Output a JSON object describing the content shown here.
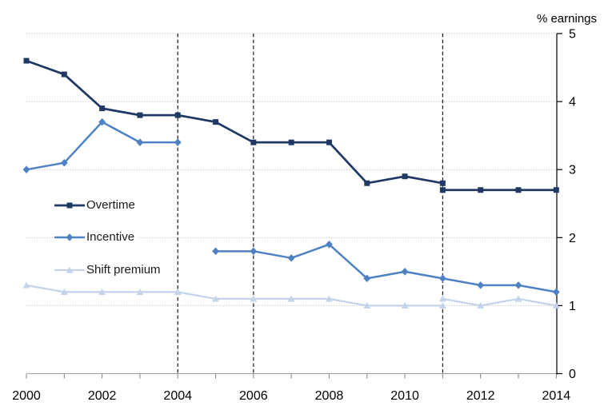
{
  "chart_data": {
    "type": "line",
    "title": "",
    "y_axis": {
      "label": "% earnings",
      "min": 0,
      "max": 5,
      "ticks": [
        0,
        1,
        2,
        3,
        4,
        5
      ]
    },
    "x_axis": {
      "min": 2000,
      "max": 2014,
      "tick_years": [
        2000,
        2001,
        2002,
        2003,
        2004,
        2005,
        2006,
        2007,
        2008,
        2009,
        2010,
        2011,
        2012,
        2013,
        2014
      ],
      "label_years": [
        2000,
        2002,
        2004,
        2006,
        2008,
        2010,
        2012,
        2014
      ]
    },
    "reference_lines": {
      "style": "dashed",
      "color": "#1a1a1a",
      "years": [
        2004,
        2006,
        2011
      ]
    },
    "grid": {
      "horizontal": true,
      "style": "dotted",
      "color": "#c3c3c3"
    },
    "legend": {
      "position": "middle-left"
    },
    "series": [
      {
        "name": "Overtime",
        "color": "#1F3864",
        "marker": "square",
        "line_width": 2.7,
        "segments": [
          {
            "years": [
              2000,
              2001,
              2002,
              2003,
              2004,
              2005,
              2006,
              2007,
              2008,
              2009,
              2010,
              2011
            ],
            "values": [
              4.6,
              4.4,
              3.9,
              3.8,
              3.8,
              3.7,
              3.4,
              3.4,
              3.4,
              2.8,
              2.9,
              2.8
            ]
          },
          {
            "years": [
              2011,
              2012,
              2013,
              2014
            ],
            "values": [
              2.7,
              2.7,
              2.7,
              2.7
            ]
          }
        ]
      },
      {
        "name": "Incentive",
        "color": "#4E82C4",
        "marker": "diamond",
        "line_width": 2.5,
        "segments": [
          {
            "years": [
              2000,
              2001,
              2002,
              2003,
              2004
            ],
            "values": [
              3.0,
              3.1,
              3.7,
              3.4,
              3.4
            ]
          },
          {
            "years": [
              2005,
              2006,
              2007,
              2008,
              2009,
              2010,
              2011,
              2012,
              2013,
              2014
            ],
            "values": [
              1.8,
              1.8,
              1.7,
              1.9,
              1.4,
              1.5,
              1.4,
              1.3,
              1.3,
              1.2
            ]
          }
        ]
      },
      {
        "name": "Shift premium",
        "color": "#C2D4EB",
        "marker": "triangle",
        "line_width": 2.2,
        "segments": [
          {
            "years": [
              2000,
              2001,
              2002,
              2003,
              2004,
              2005,
              2006,
              2007,
              2008,
              2009,
              2010,
              2011
            ],
            "values": [
              1.3,
              1.2,
              1.2,
              1.2,
              1.2,
              1.1,
              1.1,
              1.1,
              1.1,
              1.0,
              1.0,
              1.0
            ]
          },
          {
            "years": [
              2011,
              2012,
              2013,
              2014
            ],
            "values": [
              1.1,
              1.0,
              1.1,
              1.0
            ]
          }
        ]
      }
    ]
  }
}
